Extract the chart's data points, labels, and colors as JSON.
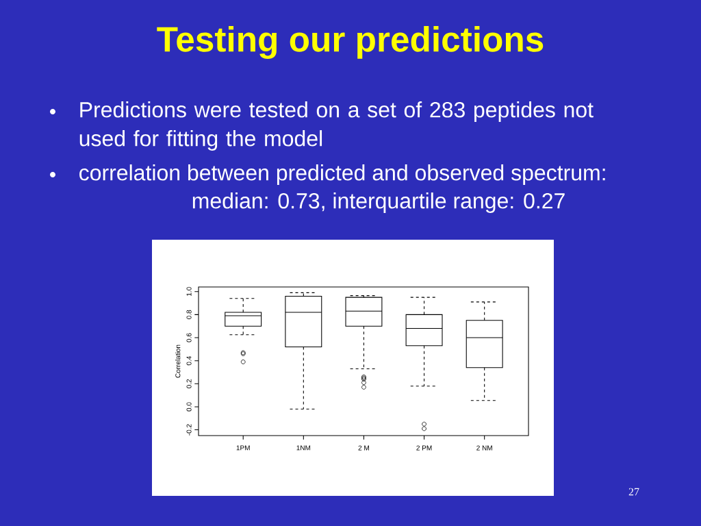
{
  "chart_data": {
    "type": "box",
    "title": "Testing our predictions",
    "annotations": [
      "Predictions were tested on a set of 283 peptides not used for fitting the model",
      "correlation between predicted and observed spectrum:",
      "median: 0.73, interquartile range: 0.27",
      "27"
    ],
    "ylabel": "Correlation",
    "categories": [
      "1PM",
      "1NM",
      "2 M",
      "2 PM",
      "2 NM"
    ],
    "boxes": [
      {
        "low": 0.625,
        "q1": 0.7,
        "median": 0.79,
        "q3": 0.82,
        "high": 0.94,
        "outliers": [
          0.47,
          0.46,
          0.39
        ]
      },
      {
        "low": -0.02,
        "q1": 0.52,
        "median": 0.82,
        "q3": 0.96,
        "high": 0.99
      },
      {
        "low": 0.33,
        "q1": 0.7,
        "median": 0.83,
        "q3": 0.95,
        "high": 0.965,
        "outliers": [
          0.26,
          0.25,
          0.24,
          0.21,
          0.17
        ]
      },
      {
        "low": 0.18,
        "q1": 0.53,
        "median": 0.68,
        "q3": 0.8,
        "high": 0.95,
        "outliers": [
          -0.15,
          -0.19
        ]
      },
      {
        "low": 0.055,
        "q1": 0.34,
        "median": 0.6,
        "q3": 0.75,
        "high": 0.91
      }
    ],
    "color": "#000000",
    "marker": "circle",
    "ylim": [
      -0.25,
      1.04
    ],
    "yticks": [
      -0.2,
      {
        "value": 0,
        "label": "0.0"
      },
      0.2,
      0.4,
      0.6,
      0.8,
      {
        "value": 1,
        "label": "1.0"
      }
    ]
  }
}
